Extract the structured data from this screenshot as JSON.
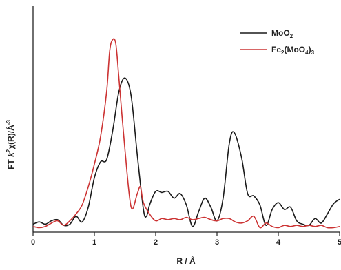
{
  "chart_data": {
    "type": "line",
    "xlabel": "R / Å",
    "ylabel": {
      "prefix": "FT ",
      "k": "k",
      "exp2": "2",
      "chi": "χ(R)/Å",
      "exp3": "-3"
    },
    "xlim": [
      0,
      5
    ],
    "ylim": [
      0,
      1
    ],
    "xticks": [
      "0",
      "1",
      "2",
      "3",
      "4",
      "5"
    ],
    "y_tick_labels": false,
    "grid": false,
    "legend_position": "top-right",
    "series": [
      {
        "name": "MoO2",
        "legend": {
          "base": "MoO",
          "sub": "2"
        },
        "color": "#1a1a1a",
        "points": [
          [
            0.0,
            0.035
          ],
          [
            0.1,
            0.045
          ],
          [
            0.2,
            0.035
          ],
          [
            0.3,
            0.05
          ],
          [
            0.4,
            0.055
          ],
          [
            0.5,
            0.03
          ],
          [
            0.6,
            0.035
          ],
          [
            0.7,
            0.07
          ],
          [
            0.8,
            0.045
          ],
          [
            0.9,
            0.11
          ],
          [
            1.0,
            0.24
          ],
          [
            1.1,
            0.31
          ],
          [
            1.2,
            0.32
          ],
          [
            1.3,
            0.45
          ],
          [
            1.4,
            0.62
          ],
          [
            1.5,
            0.68
          ],
          [
            1.6,
            0.6
          ],
          [
            1.7,
            0.34
          ],
          [
            1.8,
            0.1
          ],
          [
            1.85,
            0.07
          ],
          [
            1.9,
            0.12
          ],
          [
            2.0,
            0.18
          ],
          [
            2.1,
            0.175
          ],
          [
            2.2,
            0.18
          ],
          [
            2.3,
            0.15
          ],
          [
            2.4,
            0.17
          ],
          [
            2.5,
            0.12
          ],
          [
            2.6,
            0.025
          ],
          [
            2.7,
            0.09
          ],
          [
            2.8,
            0.15
          ],
          [
            2.9,
            0.11
          ],
          [
            3.0,
            0.05
          ],
          [
            3.1,
            0.15
          ],
          [
            3.2,
            0.39
          ],
          [
            3.28,
            0.44
          ],
          [
            3.4,
            0.33
          ],
          [
            3.5,
            0.17
          ],
          [
            3.6,
            0.16
          ],
          [
            3.7,
            0.12
          ],
          [
            3.8,
            0.03
          ],
          [
            3.9,
            0.1
          ],
          [
            4.0,
            0.13
          ],
          [
            4.1,
            0.1
          ],
          [
            4.2,
            0.11
          ],
          [
            4.3,
            0.05
          ],
          [
            4.4,
            0.035
          ],
          [
            4.5,
            0.03
          ],
          [
            4.6,
            0.06
          ],
          [
            4.7,
            0.04
          ],
          [
            4.8,
            0.08
          ],
          [
            4.9,
            0.125
          ],
          [
            5.0,
            0.145
          ]
        ]
      },
      {
        "name": "Fe2(MoO4)3",
        "legend": {
          "base": "Fe",
          "sub1": "2",
          "mid": "(MoO",
          "sub2": "4",
          "end": ")",
          "sub3": "3"
        },
        "color": "#cc3333",
        "points": [
          [
            0.0,
            0.025
          ],
          [
            0.1,
            0.02
          ],
          [
            0.2,
            0.025
          ],
          [
            0.3,
            0.04
          ],
          [
            0.4,
            0.05
          ],
          [
            0.5,
            0.03
          ],
          [
            0.6,
            0.05
          ],
          [
            0.7,
            0.08
          ],
          [
            0.8,
            0.12
          ],
          [
            0.9,
            0.2
          ],
          [
            1.0,
            0.3
          ],
          [
            1.1,
            0.42
          ],
          [
            1.2,
            0.62
          ],
          [
            1.25,
            0.8
          ],
          [
            1.3,
            0.85
          ],
          [
            1.35,
            0.83
          ],
          [
            1.4,
            0.68
          ],
          [
            1.5,
            0.36
          ],
          [
            1.6,
            0.11
          ],
          [
            1.7,
            0.17
          ],
          [
            1.75,
            0.2
          ],
          [
            1.8,
            0.13
          ],
          [
            1.9,
            0.08
          ],
          [
            2.0,
            0.05
          ],
          [
            2.1,
            0.06
          ],
          [
            2.2,
            0.055
          ],
          [
            2.3,
            0.06
          ],
          [
            2.4,
            0.055
          ],
          [
            2.5,
            0.065
          ],
          [
            2.6,
            0.055
          ],
          [
            2.7,
            0.06
          ],
          [
            2.8,
            0.065
          ],
          [
            2.9,
            0.055
          ],
          [
            3.0,
            0.05
          ],
          [
            3.1,
            0.06
          ],
          [
            3.2,
            0.06
          ],
          [
            3.3,
            0.045
          ],
          [
            3.4,
            0.04
          ],
          [
            3.5,
            0.05
          ],
          [
            3.6,
            0.07
          ],
          [
            3.7,
            0.02
          ],
          [
            3.8,
            0.04
          ],
          [
            3.9,
            0.025
          ],
          [
            4.0,
            0.02
          ],
          [
            4.1,
            0.03
          ],
          [
            4.2,
            0.025
          ],
          [
            4.3,
            0.03
          ],
          [
            4.4,
            0.025
          ],
          [
            4.5,
            0.03
          ],
          [
            4.6,
            0.025
          ],
          [
            4.7,
            0.03
          ],
          [
            4.8,
            0.02
          ],
          [
            4.9,
            0.02
          ],
          [
            5.0,
            0.025
          ]
        ]
      }
    ]
  }
}
